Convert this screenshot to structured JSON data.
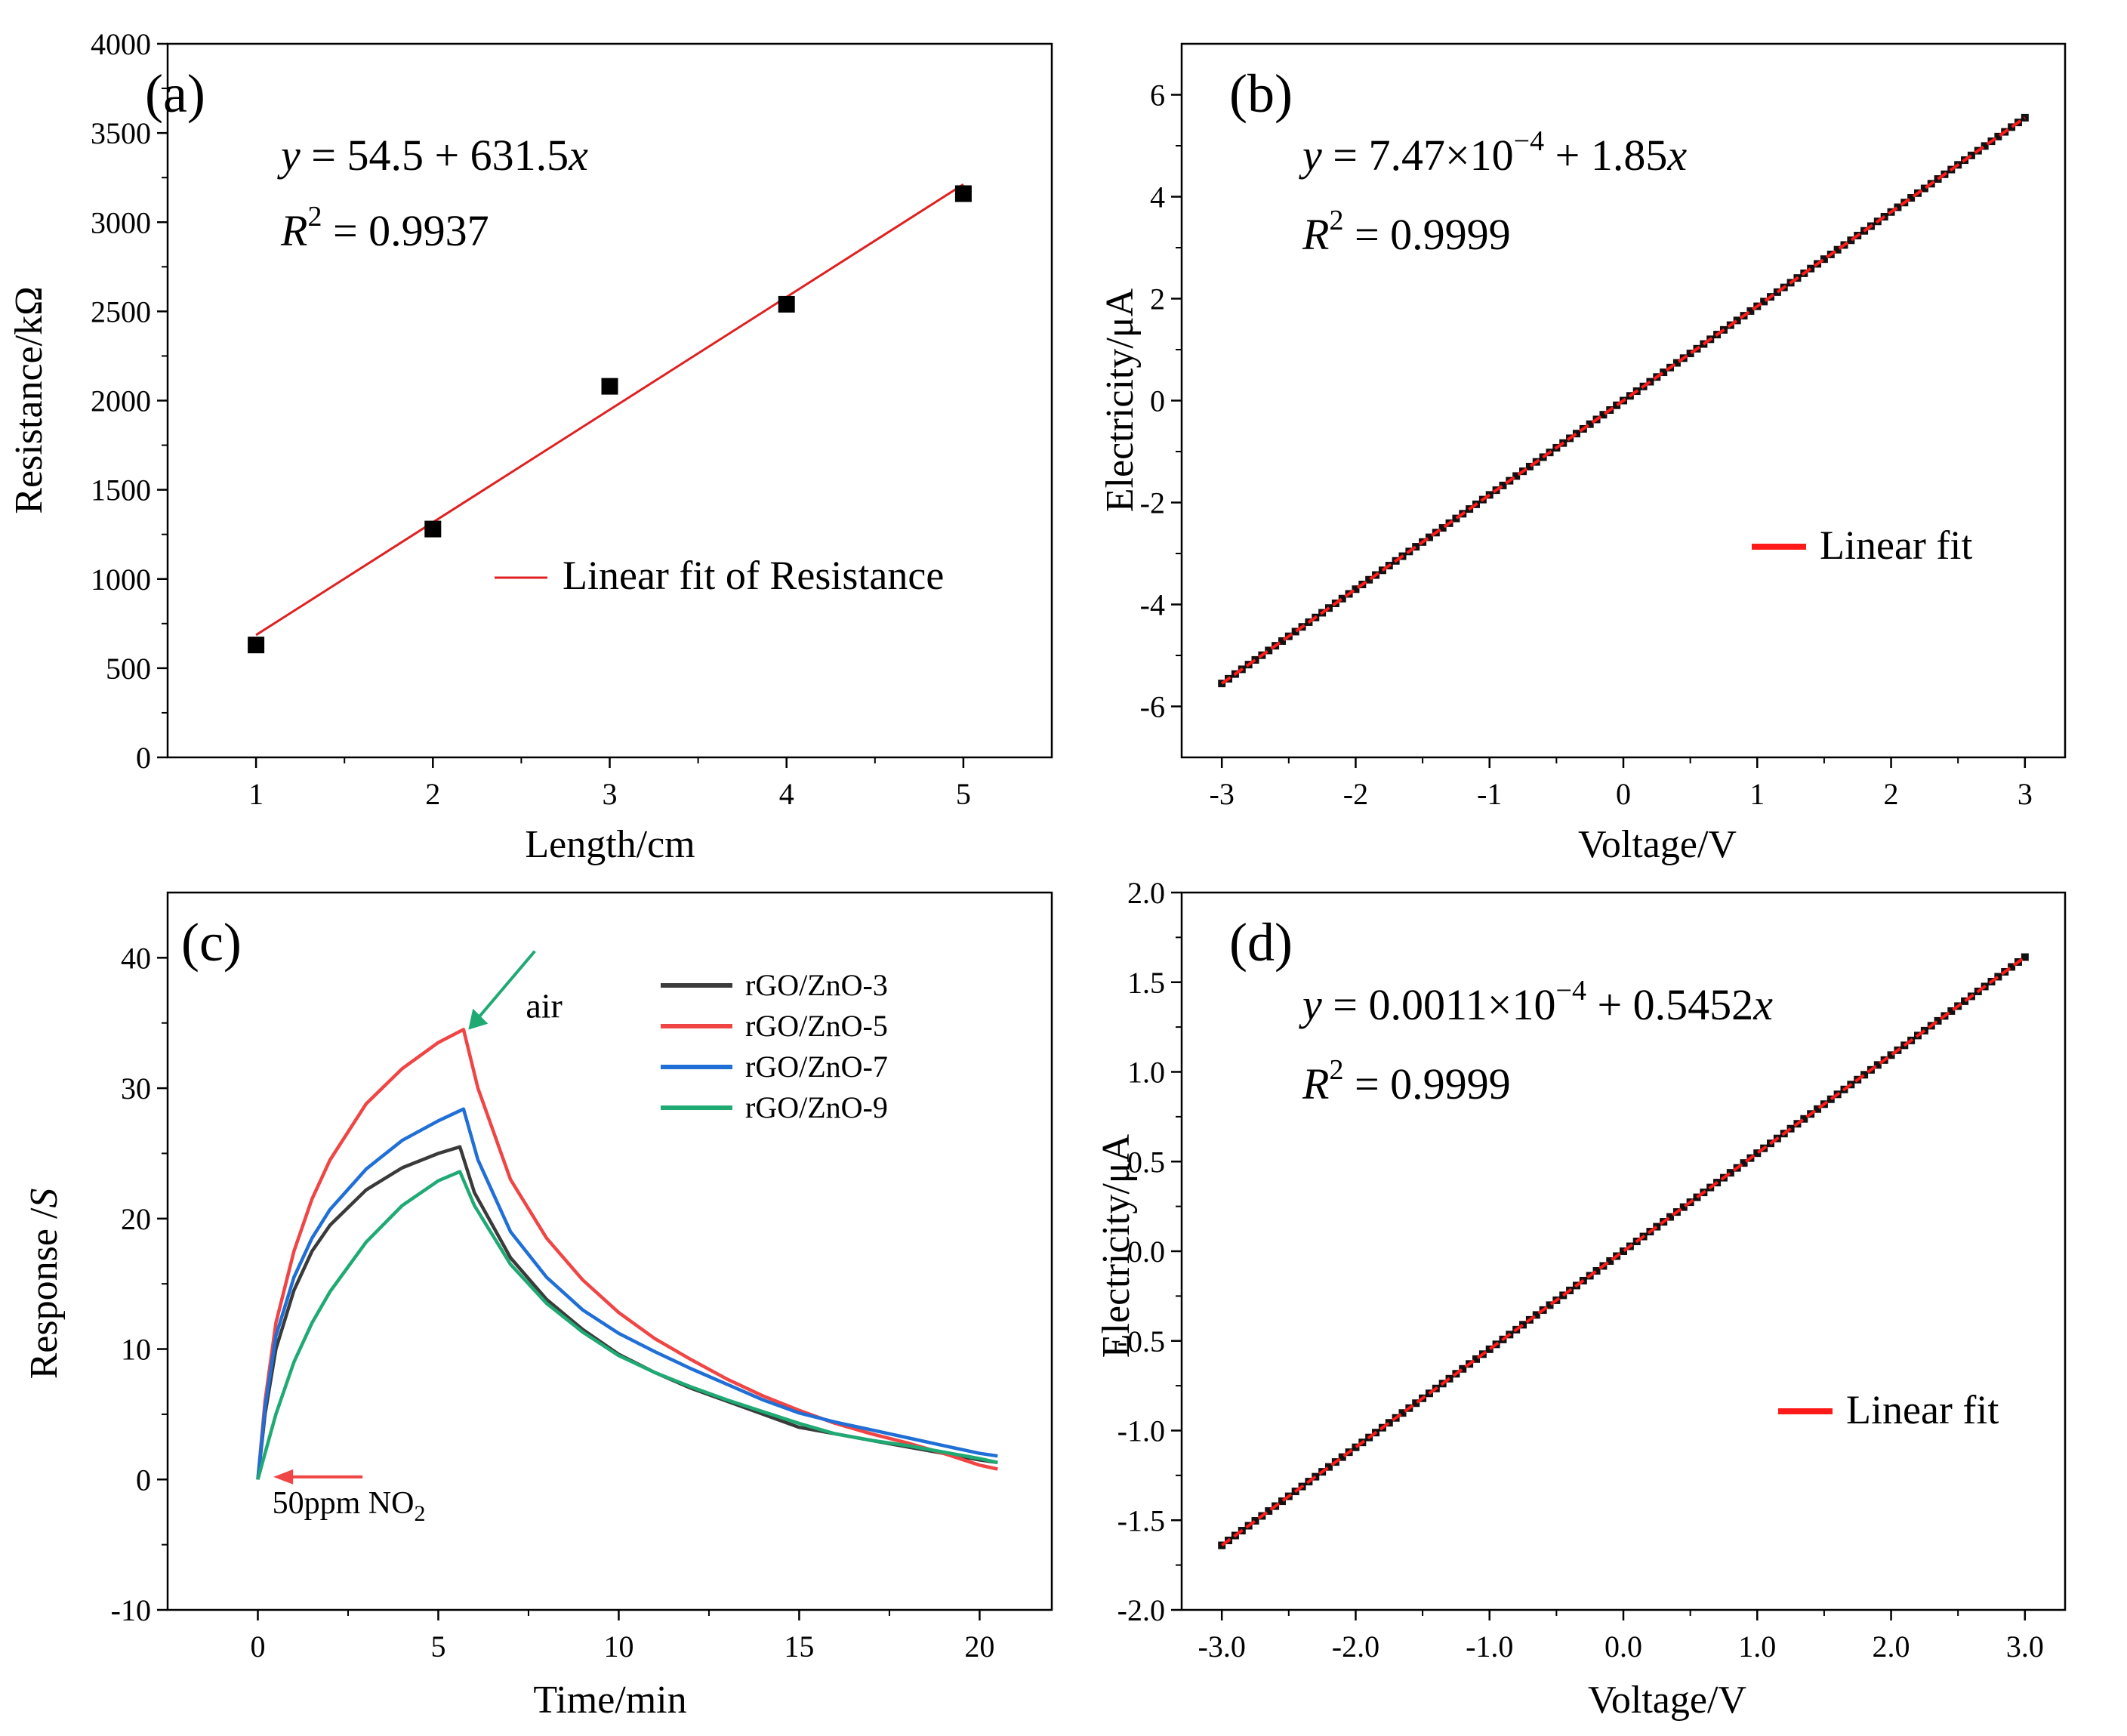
{
  "chart_data": [
    {
      "id": "a",
      "panel_label": "(a)",
      "type": "scatter",
      "xlabel": "Length/cm",
      "ylabel": "Resistance/kΩ",
      "xlim": [
        0.5,
        5.5
      ],
      "ylim": [
        0,
        4000
      ],
      "xticks": [
        1,
        2,
        3,
        4,
        5
      ],
      "yticks": [
        0,
        500,
        1000,
        1500,
        2000,
        2500,
        3000,
        3500,
        4000
      ],
      "points": {
        "x": [
          1,
          2,
          3,
          4,
          5
        ],
        "y": [
          630,
          1280,
          2080,
          2540,
          3160
        ]
      },
      "fit": {
        "x": [
          1,
          5
        ],
        "y": [
          686,
          3212
        ],
        "color": "#e02020"
      },
      "legend": "Linear fit of  Resistance",
      "equation": "y = 54.5 + 631.5x",
      "r2": "R² = 0.9937"
    },
    {
      "id": "b",
      "panel_label": "(b)",
      "type": "line",
      "xlabel": "Voltage/V",
      "ylabel": "Electricity/μA",
      "xlim": [
        -3.3,
        3.3
      ],
      "ylim": [
        -7,
        7
      ],
      "xticks": [
        -3,
        -2,
        -1,
        0,
        1,
        2,
        3
      ],
      "yticks": [
        -6,
        -4,
        -2,
        0,
        2,
        4,
        6
      ],
      "fit": {
        "x": [
          -3,
          3
        ],
        "y": [
          -5.55,
          5.55
        ],
        "color": "#ff1a1a"
      },
      "marker_count": 121,
      "legend": "Linear fit",
      "equation": "y = 7.47×10⁻⁴ + 1.85x",
      "r2": "R² = 0.9999"
    },
    {
      "id": "c",
      "panel_label": "(c)",
      "type": "line",
      "xlabel": "Time/min",
      "ylabel": "Response /S",
      "xlim": [
        -2.5,
        22
      ],
      "ylim": [
        -10,
        45
      ],
      "xticks": [
        0,
        5,
        10,
        15,
        20
      ],
      "yticks": [
        -10,
        0,
        10,
        20,
        30,
        40
      ],
      "series": [
        {
          "name": "rGO/ZnO-3",
          "color": "#3a3a3a",
          "x": [
            0,
            0.2,
            0.5,
            1,
            1.5,
            2,
            3,
            4,
            5,
            5.6,
            6,
            7,
            8,
            9,
            10,
            11,
            12,
            13,
            14,
            15,
            16,
            17,
            18,
            19,
            20,
            20.5
          ],
          "y": [
            0,
            5,
            10,
            14.5,
            17.5,
            19.5,
            22.2,
            23.9,
            25,
            25.5,
            22,
            17,
            13.8,
            11.5,
            9.6,
            8.2,
            7,
            6,
            5,
            4,
            3.5,
            3,
            2.5,
            2,
            1.5,
            1.3
          ]
        },
        {
          "name": "rGO/ZnO-5",
          "color": "#f04545",
          "x": [
            0,
            0.2,
            0.5,
            1,
            1.5,
            2,
            3,
            4,
            5,
            5.7,
            6.1,
            7,
            8,
            9,
            10,
            11,
            12,
            13,
            14,
            15,
            16,
            17,
            18,
            19,
            20,
            20.5
          ],
          "y": [
            0,
            6,
            12,
            17.5,
            21.5,
            24.5,
            28.8,
            31.5,
            33.5,
            34.5,
            30,
            23,
            18.5,
            15.3,
            12.8,
            10.8,
            9.2,
            7.7,
            6.4,
            5.3,
            4.3,
            3.5,
            2.8,
            2,
            1.1,
            0.8
          ]
        },
        {
          "name": "rGO/ZnO-7",
          "color": "#1f6fd6",
          "x": [
            0,
            0.2,
            0.5,
            1,
            1.5,
            2,
            3,
            4,
            5,
            5.7,
            6.1,
            7,
            8,
            9,
            10,
            11,
            12,
            13,
            14,
            15,
            16,
            17,
            18,
            19,
            20,
            20.5
          ],
          "y": [
            0,
            5.5,
            11,
            15.5,
            18.5,
            20.7,
            23.8,
            26,
            27.5,
            28.4,
            24.5,
            19,
            15.5,
            13,
            11.2,
            9.8,
            8.5,
            7.3,
            6.1,
            5.1,
            4.4,
            3.8,
            3.2,
            2.6,
            2,
            1.8
          ]
        },
        {
          "name": "rGO/ZnO-9",
          "color": "#1faa74",
          "x": [
            0,
            0.2,
            0.5,
            1,
            1.5,
            2,
            3,
            4,
            5,
            5.6,
            6,
            7,
            8,
            9,
            10,
            11,
            12,
            13,
            14,
            15,
            16,
            17,
            18,
            19,
            20,
            20.5
          ],
          "y": [
            0,
            2,
            5,
            9,
            12,
            14.4,
            18.2,
            21,
            22.9,
            23.6,
            21,
            16.5,
            13.5,
            11.3,
            9.5,
            8.2,
            7.1,
            6.1,
            5.2,
            4.3,
            3.5,
            3,
            2.6,
            2.1,
            1.6,
            1.3
          ]
        }
      ],
      "annotations": {
        "air": "air",
        "gas_prefix": "50ppm NO",
        "gas_sub": "2"
      }
    },
    {
      "id": "d",
      "panel_label": "(d)",
      "type": "line",
      "xlabel": "Voltage/V",
      "ylabel": "Electricity/μA",
      "xlim": [
        -3.3,
        3.3
      ],
      "ylim": [
        -2.0,
        2.0
      ],
      "xticks": [
        -3,
        -2,
        -1,
        0,
        1,
        2,
        3
      ],
      "yticks": [
        -2.0,
        -1.5,
        -1.0,
        -0.5,
        0.0,
        0.5,
        1.0,
        1.5,
        2.0
      ],
      "fit": {
        "x": [
          -3,
          3
        ],
        "y": [
          -1.64,
          1.64
        ],
        "color": "#ff1a1a"
      },
      "marker_count": 121,
      "legend": "Linear fit",
      "equation": "y = 0.0011×10⁻⁴ + 0.5452x",
      "r2": "R² = 0.9999"
    }
  ]
}
